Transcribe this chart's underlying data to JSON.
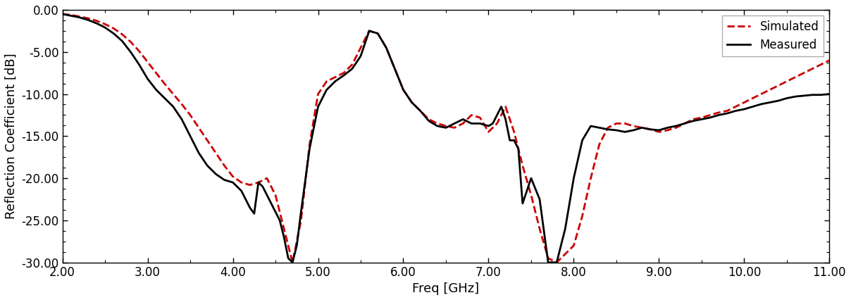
{
  "simulated_x": [
    2.0,
    2.1,
    2.2,
    2.3,
    2.4,
    2.5,
    2.6,
    2.7,
    2.8,
    2.9,
    3.0,
    3.1,
    3.2,
    3.3,
    3.4,
    3.5,
    3.6,
    3.7,
    3.8,
    3.9,
    4.0,
    4.1,
    4.2,
    4.3,
    4.4,
    4.5,
    4.6,
    4.7,
    4.8,
    4.9,
    5.0,
    5.1,
    5.2,
    5.3,
    5.4,
    5.5,
    5.6,
    5.7,
    5.8,
    5.9,
    6.0,
    6.1,
    6.2,
    6.3,
    6.4,
    6.5,
    6.6,
    6.7,
    6.8,
    6.9,
    7.0,
    7.1,
    7.2,
    7.3,
    7.4,
    7.5,
    7.6,
    7.7,
    7.8,
    7.9,
    8.0,
    8.1,
    8.2,
    8.3,
    8.4,
    8.5,
    8.6,
    8.7,
    8.8,
    8.9,
    9.0,
    9.1,
    9.2,
    9.3,
    9.4,
    9.5,
    9.6,
    9.7,
    9.8,
    9.9,
    10.0,
    10.1,
    10.2,
    10.3,
    10.4,
    10.5,
    10.6,
    10.7,
    10.8,
    10.9,
    11.0
  ],
  "simulated_y": [
    -0.5,
    -0.6,
    -0.8,
    -1.0,
    -1.3,
    -1.7,
    -2.2,
    -2.9,
    -3.8,
    -4.9,
    -6.2,
    -7.5,
    -8.8,
    -10.0,
    -11.2,
    -12.5,
    -14.0,
    -15.5,
    -17.0,
    -18.5,
    -19.8,
    -20.5,
    -20.8,
    -20.5,
    -20.0,
    -22.0,
    -26.0,
    -30.0,
    -25.0,
    -16.0,
    -10.0,
    -8.5,
    -8.0,
    -7.5,
    -6.5,
    -4.5,
    -2.5,
    -2.8,
    -4.5,
    -7.0,
    -9.5,
    -11.0,
    -12.0,
    -13.0,
    -13.5,
    -13.8,
    -14.0,
    -13.5,
    -12.5,
    -12.8,
    -14.5,
    -13.5,
    -11.5,
    -14.5,
    -18.5,
    -22.0,
    -26.0,
    -29.5,
    -30.0,
    -29.0,
    -28.0,
    -24.5,
    -20.0,
    -16.0,
    -14.0,
    -13.5,
    -13.5,
    -13.8,
    -14.0,
    -14.2,
    -14.5,
    -14.3,
    -14.0,
    -13.5,
    -13.0,
    -12.8,
    -12.5,
    -12.2,
    -12.0,
    -11.5,
    -11.0,
    -10.5,
    -10.0,
    -9.5,
    -9.0,
    -8.5,
    -8.0,
    -7.5,
    -7.0,
    -6.5,
    -6.0
  ],
  "measured_x": [
    2.0,
    2.1,
    2.2,
    2.3,
    2.4,
    2.5,
    2.6,
    2.7,
    2.8,
    2.9,
    3.0,
    3.1,
    3.2,
    3.3,
    3.4,
    3.5,
    3.6,
    3.7,
    3.8,
    3.9,
    4.0,
    4.05,
    4.1,
    4.15,
    4.2,
    4.25,
    4.3,
    4.35,
    4.4,
    4.45,
    4.5,
    4.55,
    4.6,
    4.65,
    4.7,
    4.75,
    4.8,
    4.9,
    5.0,
    5.1,
    5.2,
    5.3,
    5.4,
    5.5,
    5.6,
    5.7,
    5.8,
    5.9,
    6.0,
    6.1,
    6.2,
    6.3,
    6.4,
    6.5,
    6.6,
    6.7,
    6.8,
    6.9,
    7.0,
    7.05,
    7.1,
    7.15,
    7.2,
    7.25,
    7.3,
    7.35,
    7.4,
    7.45,
    7.5,
    7.6,
    7.7,
    7.8,
    7.9,
    8.0,
    8.1,
    8.2,
    8.3,
    8.4,
    8.5,
    8.6,
    8.7,
    8.8,
    8.9,
    9.0,
    9.1,
    9.2,
    9.3,
    9.4,
    9.5,
    9.6,
    9.7,
    9.8,
    9.9,
    10.0,
    10.1,
    10.2,
    10.3,
    10.4,
    10.5,
    10.6,
    10.7,
    10.8,
    10.9,
    11.0
  ],
  "measured_y": [
    -0.5,
    -0.7,
    -0.9,
    -1.2,
    -1.6,
    -2.1,
    -2.8,
    -3.7,
    -5.0,
    -6.5,
    -8.2,
    -9.5,
    -10.5,
    -11.5,
    -13.0,
    -15.0,
    -17.0,
    -18.5,
    -19.5,
    -20.2,
    -20.5,
    -21.0,
    -21.5,
    -22.5,
    -23.5,
    -24.2,
    -20.5,
    -21.0,
    -22.0,
    -23.0,
    -24.0,
    -25.0,
    -27.0,
    -29.5,
    -30.0,
    -28.0,
    -24.0,
    -16.5,
    -11.5,
    -9.5,
    -8.5,
    -7.8,
    -7.0,
    -5.5,
    -2.5,
    -2.8,
    -4.5,
    -7.0,
    -9.5,
    -11.0,
    -12.0,
    -13.2,
    -13.8,
    -14.0,
    -13.5,
    -13.0,
    -13.5,
    -13.5,
    -13.8,
    -13.5,
    -12.5,
    -11.5,
    -13.0,
    -15.5,
    -15.5,
    -16.5,
    -23.0,
    -21.5,
    -20.0,
    -22.5,
    -30.0,
    -30.0,
    -26.0,
    -20.0,
    -15.5,
    -13.8,
    -14.0,
    -14.2,
    -14.3,
    -14.5,
    -14.3,
    -14.0,
    -14.2,
    -14.3,
    -14.0,
    -13.8,
    -13.5,
    -13.2,
    -13.0,
    -12.8,
    -12.5,
    -12.3,
    -12.0,
    -11.8,
    -11.5,
    -11.2,
    -11.0,
    -10.8,
    -10.5,
    -10.3,
    -10.2,
    -10.1,
    -10.1,
    -10.0
  ],
  "xlim": [
    2.0,
    11.0
  ],
  "ylim": [
    -30.0,
    0.0
  ],
  "xlabel": "Freq [GHz]",
  "ylabel": "Reflection Coefficient [dB]",
  "xticks": [
    2.0,
    3.0,
    4.0,
    5.0,
    6.0,
    7.0,
    8.0,
    9.0,
    10.0,
    11.0
  ],
  "yticks": [
    0.0,
    -5.0,
    -10.0,
    -15.0,
    -20.0,
    -25.0,
    -30.0
  ],
  "xtick_labels": [
    "2.00",
    "3.00",
    "4.00",
    "5.00",
    "6.00",
    "7.00",
    "8.00",
    "9.00",
    "10.00",
    "11.00"
  ],
  "ytick_labels": [
    "0.00",
    "-5.00",
    "-10.00",
    "-15.00",
    "-20.00",
    "-25.00",
    "-30.00"
  ],
  "simulated_color": "#cc0000",
  "measured_color": "#000000",
  "simulated_label": "Simulated",
  "measured_label": "Measured",
  "background_color": "#ffffff",
  "legend_loc": "upper right",
  "fontsize_ticks": 12,
  "fontsize_labels": 13,
  "linewidth_sim": 2.0,
  "linewidth_meas": 2.0
}
